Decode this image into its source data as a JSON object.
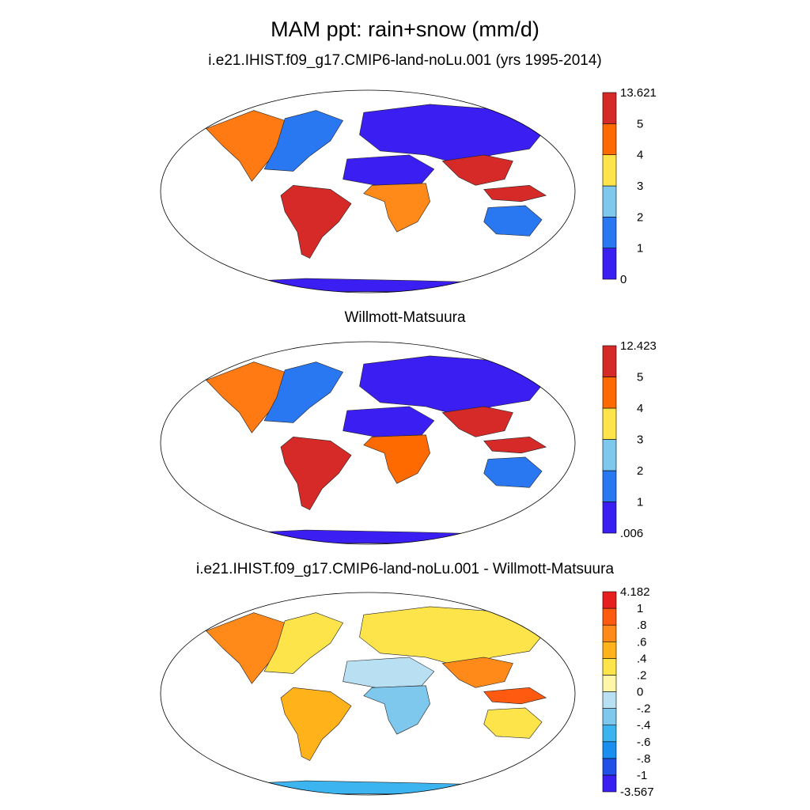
{
  "title": "MAM ppt: rain+snow (mm/d)",
  "panels": [
    {
      "subtitle": "i.e21.IHIST.f09_g17.CMIP6-land-noLu.001 (yrs 1995-2014)",
      "colorbar": {
        "labels": [
          "13.621",
          "5",
          "4",
          "3",
          "2",
          "1",
          "0"
        ],
        "colors": [
          "#3a1ef2",
          "#2a77f2",
          "#7ec8ee",
          "#fde44b",
          "#ff6a00",
          "#d62a28"
        ]
      },
      "regions": {
        "north_america_west": "#ff7a12",
        "north_america_east": "#2a77f2",
        "south_america": "#d62a28",
        "africa_central": "#ff8a1a",
        "africa_north": "#3a1ef2",
        "europe_asia": "#3a1ef2",
        "south_asia": "#d62a28",
        "maritime": "#d62a28",
        "australia": "#2a77f2",
        "antarctica": "#3a1ef2"
      }
    },
    {
      "subtitle": "Willmott-Matsuura",
      "colorbar": {
        "labels": [
          "12.423",
          "5",
          "4",
          "3",
          "2",
          "1",
          ".006"
        ],
        "colors": [
          "#3a1ef2",
          "#2a77f2",
          "#7ec8ee",
          "#fde44b",
          "#ff6a00",
          "#d62a28"
        ]
      },
      "regions": {
        "north_america_west": "#ff7a12",
        "north_america_east": "#2a77f2",
        "south_america": "#d62a28",
        "africa_central": "#ff6a00",
        "africa_north": "#3a1ef2",
        "europe_asia": "#3a1ef2",
        "south_asia": "#d62a28",
        "maritime": "#d62a28",
        "australia": "#2a77f2",
        "antarctica": "#3a1ef2"
      }
    },
    {
      "subtitle": "i.e21.IHIST.f09_g17.CMIP6-land-noLu.001 - Willmott-Matsuura",
      "colorbar": {
        "labels": [
          "4.182",
          "1",
          ".8",
          ".6",
          ".4",
          ".2",
          "0",
          "-.2",
          "-.4",
          "-.6",
          "-.8",
          "-1",
          "-3.567"
        ],
        "colors": [
          "#3a1ef2",
          "#2050e8",
          "#1a8ff0",
          "#3bb4f0",
          "#7ec8ee",
          "#b8e0f2",
          "#fff6a8",
          "#fde44b",
          "#ffb21a",
          "#ff8a1a",
          "#ff5a10",
          "#e61e1e"
        ]
      },
      "regions": {
        "north_america_west": "#ff8a1a",
        "north_america_east": "#fde44b",
        "south_america": "#ffb21a",
        "africa_central": "#7ec8ee",
        "africa_north": "#b8e0f2",
        "europe_asia": "#fde44b",
        "south_asia": "#ff8a1a",
        "maritime": "#ff5a10",
        "australia": "#fde44b",
        "antarctica": "#3bb4f0"
      }
    }
  ]
}
